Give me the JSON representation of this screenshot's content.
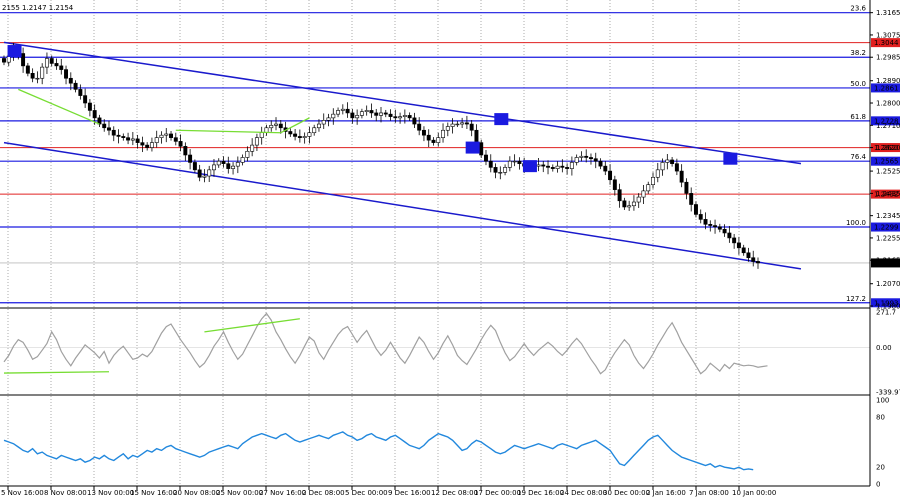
{
  "header": {
    "ohlc_text": "2155 1.2147 1.2154"
  },
  "chart_data": [
    {
      "type": "candlestick",
      "panel": "price",
      "ylim": [
        1.198,
        1.32
      ],
      "y_ticks": [
        "1.3165",
        "1.3075",
        "1.2985",
        "1.2890",
        "1.2800",
        "1.2710",
        "1.2620",
        "1.2525",
        "1.2435",
        "1.2345",
        "1.2255",
        "1.2165",
        "1.2070",
        "1.1980"
      ],
      "fib_levels": [
        {
          "label": "23.6",
          "price": 1.3165,
          "color": "#1a1ae0",
          "price_label": ""
        },
        {
          "label": "38.2",
          "price": 1.2985,
          "color": "#1a1ae0",
          "price_label": ""
        },
        {
          "label": "50.0",
          "price": 1.2861,
          "color": "#1a1ae0",
          "price_label": "1.2861"
        },
        {
          "label": "61.8",
          "price": 1.2728,
          "color": "#1a1ae0",
          "price_label": "1.2728"
        },
        {
          "label": "76.4",
          "price": 1.2565,
          "color": "#1a1ae0",
          "price_label": "1.2565"
        },
        {
          "label": "100.0",
          "price": 1.2299,
          "color": "#1a1ae0",
          "price_label": "1.2299"
        },
        {
          "label": "127.2",
          "price": 1.1993,
          "color": "#1a1ae0",
          "price_label": "1.1993"
        }
      ],
      "hlines": [
        {
          "price": 1.3044,
          "color": "#e02020",
          "label": "1.3044"
        },
        {
          "price": 1.262,
          "color": "#e02020",
          "label": "1.2620"
        },
        {
          "price": 1.2432,
          "color": "#e02020",
          "label": "1.2432"
        }
      ],
      "current_price": {
        "price": 1.2154,
        "label": "1.2154"
      },
      "channel_upper": [
        [
          0,
          1.3045
        ],
        [
          167,
          1.2555
        ]
      ],
      "channel_lower": [
        [
          0,
          1.264
        ],
        [
          167,
          1.213
        ]
      ],
      "closes": [
        1.2965,
        1.299,
        1.3015,
        1.3,
        1.295,
        1.292,
        1.29,
        1.29,
        1.2945,
        1.298,
        1.296,
        1.295,
        1.2935,
        1.29,
        1.288,
        1.2855,
        1.283,
        1.28,
        1.277,
        1.274,
        1.2715,
        1.27,
        1.269,
        1.267,
        1.2665,
        1.266,
        1.265,
        1.2655,
        1.264,
        1.263,
        1.262,
        1.264,
        1.266,
        1.267,
        1.2675,
        1.266,
        1.2645,
        1.2625,
        1.259,
        1.256,
        1.253,
        1.25,
        1.2505,
        1.253,
        1.255,
        1.2565,
        1.2555,
        1.2535,
        1.2545,
        1.256,
        1.258,
        1.2605,
        1.263,
        1.266,
        1.268,
        1.27,
        1.271,
        1.2715,
        1.27,
        1.2685,
        1.2675,
        1.2665,
        1.266,
        1.2665,
        1.268,
        1.27,
        1.2715,
        1.273,
        1.274,
        1.2755,
        1.277,
        1.2775,
        1.276,
        1.274,
        1.275,
        1.2765,
        1.277,
        1.276,
        1.275,
        1.276,
        1.2755,
        1.2745,
        1.274,
        1.2745,
        1.275,
        1.274,
        1.2715,
        1.269,
        1.267,
        1.265,
        1.264,
        1.266,
        1.269,
        1.2705,
        1.2715,
        1.2715,
        1.272,
        1.2715,
        1.269,
        1.264,
        1.259,
        1.2565,
        1.254,
        1.252,
        1.252,
        1.254,
        1.2565,
        1.2565,
        1.2555,
        1.2545,
        1.254,
        1.2545,
        1.255,
        1.2545,
        1.254,
        1.2535,
        1.2545,
        1.254,
        1.2535,
        1.256,
        1.258,
        1.2585,
        1.258,
        1.2575,
        1.2565,
        1.2545,
        1.2525,
        1.249,
        1.245,
        1.2405,
        1.238,
        1.2385,
        1.24,
        1.242,
        1.2445,
        1.247,
        1.25,
        1.253,
        1.256,
        1.257,
        1.2555,
        1.2525,
        1.248,
        1.2435,
        1.239,
        1.235,
        1.233,
        1.231,
        1.2305,
        1.23,
        1.229,
        1.2275,
        1.2255,
        1.2235,
        1.2215,
        1.2195,
        1.2175,
        1.216,
        1.2154
      ],
      "notes": []
    },
    {
      "type": "line",
      "panel": "cci",
      "ylim": [
        -339.978,
        271.7
      ],
      "y_ticks": [
        "271.7",
        "0.00",
        "-339.978"
      ],
      "series_color": "#a0a0a0",
      "values": [
        -110,
        -60,
        10,
        60,
        40,
        -20,
        -90,
        -70,
        -20,
        30,
        120,
        60,
        -30,
        -90,
        -140,
        -80,
        -30,
        20,
        -10,
        -40,
        -80,
        -30,
        -120,
        -60,
        -20,
        10,
        -40,
        -90,
        -80,
        -50,
        -70,
        -30,
        40,
        110,
        160,
        180,
        120,
        60,
        10,
        -40,
        -100,
        -150,
        -120,
        -60,
        10,
        60,
        120,
        40,
        -30,
        -90,
        -50,
        20,
        90,
        160,
        220,
        260,
        210,
        120,
        60,
        -10,
        -70,
        -120,
        -60,
        10,
        80,
        50,
        -40,
        -90,
        -20,
        40,
        100,
        140,
        160,
        100,
        40,
        90,
        130,
        60,
        -10,
        -60,
        -20,
        40,
        -20,
        -80,
        -120,
        -60,
        10,
        80,
        40,
        -30,
        -90,
        -40,
        30,
        90,
        20,
        -60,
        -100,
        -130,
        -70,
        -10,
        60,
        120,
        170,
        130,
        40,
        -40,
        -100,
        -70,
        -20,
        30,
        -20,
        -60,
        -20,
        10,
        40,
        10,
        -30,
        -60,
        -20,
        30,
        70,
        30,
        -30,
        -90,
        -140,
        -200,
        -170,
        -100,
        -40,
        10,
        60,
        20,
        -60,
        -120,
        -160,
        -110,
        -50,
        20,
        80,
        140,
        190,
        120,
        40,
        -20,
        -80,
        -140,
        -200,
        -170,
        -120,
        -150,
        -180,
        -130,
        -160,
        -120,
        -130,
        -140,
        -135,
        -140,
        -150,
        -145,
        -140
      ],
      "divergence_lines": [
        {
          "from": [
            0,
            -195
          ],
          "to": [
            22,
            -185
          ]
        },
        {
          "from": [
            42,
            120
          ],
          "to": [
            62,
            220
          ]
        }
      ],
      "notes": []
    },
    {
      "type": "line",
      "panel": "rsi",
      "ylim": [
        0,
        100
      ],
      "y_ticks": [
        "100",
        "80",
        "20",
        "0"
      ],
      "series_color": "#2288dd",
      "values": [
        52,
        50,
        48,
        44,
        40,
        38,
        42,
        36,
        38,
        34,
        32,
        30,
        34,
        32,
        30,
        28,
        30,
        26,
        28,
        32,
        30,
        34,
        30,
        28,
        32,
        36,
        30,
        34,
        32,
        36,
        40,
        38,
        42,
        40,
        44,
        46,
        42,
        40,
        38,
        36,
        34,
        32,
        34,
        38,
        40,
        42,
        44,
        46,
        44,
        42,
        48,
        52,
        56,
        58,
        60,
        58,
        56,
        54,
        58,
        60,
        56,
        52,
        50,
        52,
        54,
        56,
        58,
        56,
        54,
        58,
        60,
        62,
        58,
        56,
        52,
        54,
        58,
        60,
        56,
        54,
        52,
        56,
        58,
        54,
        50,
        46,
        44,
        42,
        46,
        52,
        56,
        60,
        58,
        56,
        52,
        46,
        40,
        42,
        48,
        52,
        50,
        46,
        42,
        38,
        36,
        38,
        42,
        46,
        44,
        42,
        44,
        46,
        48,
        46,
        44,
        42,
        46,
        48,
        46,
        44,
        42,
        46,
        48,
        50,
        52,
        48,
        44,
        40,
        32,
        24,
        22,
        28,
        34,
        40,
        46,
        52,
        56,
        58,
        52,
        46,
        40,
        36,
        32,
        30,
        28,
        26,
        24,
        22,
        24,
        20,
        22,
        20,
        19,
        18,
        20,
        17,
        18,
        17
      ],
      "notes": []
    }
  ],
  "x_axis": {
    "labels": [
      "5 Nov 16:00",
      "8 Nov 08:00",
      "13 Nov 00:00",
      "15 Nov 16:00",
      "20 Nov 08:00",
      "25 Nov 00:00",
      "27 Nov 16:00",
      "2 Dec 08:00",
      "5 Dec 00:00",
      "9 Dec 16:00",
      "12 Dec 08:00",
      "17 Dec 00:00",
      "19 Dec 16:00",
      "24 Dec 08:00",
      "30 Dec 00:00",
      "2 Jan 16:00",
      "7 Jan 08:00",
      "10 Jan 00:00"
    ]
  }
}
